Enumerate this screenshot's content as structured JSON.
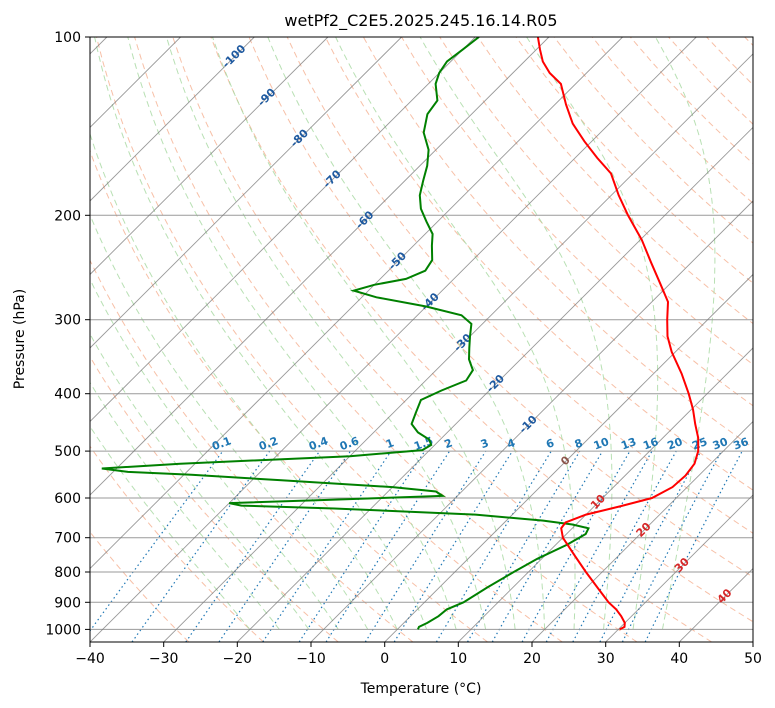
{
  "chart_data": {
    "type": "line",
    "title": "wetPf2_C2E5.2025.245.16.14.R05",
    "xlabel": "Temperature (°C)",
    "ylabel": "Pressure (hPa)",
    "xlim": [
      -40,
      50
    ],
    "ylim": [
      1050,
      100
    ],
    "skew_deg_per_log_pressure": 35,
    "x_ticks": [
      -40,
      -30,
      -20,
      -10,
      0,
      10,
      20,
      30,
      40,
      50
    ],
    "x_tick_labels": [
      "−40",
      "−30",
      "−20",
      "−10",
      "0",
      "10",
      "20",
      "30",
      "40",
      "50"
    ],
    "y_ticks": [
      1000,
      900,
      800,
      700,
      600,
      500,
      400,
      300,
      200,
      100
    ],
    "y_tick_labels": [
      "1000",
      "900",
      "800",
      "700",
      "600",
      "500",
      "400",
      "300",
      "200",
      "100"
    ],
    "isotherm_labels": [
      {
        "value": -100,
        "text": "-100"
      },
      {
        "value": -90,
        "text": "-90"
      },
      {
        "value": -80,
        "text": "-80"
      },
      {
        "value": -70,
        "text": "-70"
      },
      {
        "value": -60,
        "text": "-60"
      },
      {
        "value": -50,
        "text": "-50"
      },
      {
        "value": -40,
        "text": "-40"
      },
      {
        "value": -30,
        "text": "-30"
      },
      {
        "value": -20,
        "text": "-20"
      },
      {
        "value": -10,
        "text": "-10"
      },
      {
        "value": 0,
        "text": "0"
      },
      {
        "value": 10,
        "text": "10"
      },
      {
        "value": 20,
        "text": "20"
      },
      {
        "value": 30,
        "text": "30"
      },
      {
        "value": 40,
        "text": "40"
      }
    ],
    "mixing_ratio_labels": [
      "0.1",
      "0.2",
      "0.4",
      "0.6",
      "1",
      "1.5",
      "2",
      "3",
      "4",
      "6",
      "8",
      "10",
      "13",
      "16",
      "20",
      "25",
      "30",
      "36"
    ],
    "mixing_ratio_values": [
      0.1,
      0.2,
      0.4,
      0.6,
      1,
      1.5,
      2,
      3,
      4,
      6,
      8,
      10,
      13,
      16,
      20,
      25,
      30,
      36
    ],
    "series": [
      {
        "name": "Temperature",
        "color": "#ff0000",
        "points": [
          [
            1000,
            30.2
          ],
          [
            990,
            30.5
          ],
          [
            975,
            30.0
          ],
          [
            950,
            28.6
          ],
          [
            925,
            27.0
          ],
          [
            900,
            25.0
          ],
          [
            850,
            21.5
          ],
          [
            800,
            17.8
          ],
          [
            750,
            14.0
          ],
          [
            700,
            10.0
          ],
          [
            675,
            8.5
          ],
          [
            660,
            8.3
          ],
          [
            640,
            10.0
          ],
          [
            620,
            13.5
          ],
          [
            600,
            16.7
          ],
          [
            575,
            18.0
          ],
          [
            550,
            18.2
          ],
          [
            525,
            17.8
          ],
          [
            500,
            16.6
          ],
          [
            475,
            14.8
          ],
          [
            450,
            12.5
          ],
          [
            425,
            10.2
          ],
          [
            400,
            7.5
          ],
          [
            370,
            3.8
          ],
          [
            340,
            -0.5
          ],
          [
            320,
            -3.2
          ],
          [
            300,
            -5.5
          ],
          [
            280,
            -7.8
          ],
          [
            260,
            -11.5
          ],
          [
            240,
            -15.5
          ],
          [
            220,
            -19.8
          ],
          [
            200,
            -25.0
          ],
          [
            185,
            -29.0
          ],
          [
            170,
            -33.0
          ],
          [
            160,
            -37.0
          ],
          [
            150,
            -41.0
          ],
          [
            140,
            -45.0
          ],
          [
            130,
            -48.5
          ],
          [
            120,
            -52.0
          ],
          [
            115,
            -55.0
          ],
          [
            110,
            -57.5
          ],
          [
            105,
            -59.5
          ],
          [
            100,
            -61.5
          ]
        ]
      },
      {
        "name": "Dewpoint",
        "color": "#008000",
        "points": [
          [
            1000,
            2.8
          ],
          [
            990,
            2.6
          ],
          [
            975,
            3.2
          ],
          [
            950,
            3.8
          ],
          [
            925,
            4.0
          ],
          [
            900,
            5.3
          ],
          [
            850,
            6.5
          ],
          [
            800,
            8.0
          ],
          [
            760,
            9.4
          ],
          [
            720,
            11.5
          ],
          [
            690,
            12.6
          ],
          [
            675,
            12.2
          ],
          [
            665,
            9.5
          ],
          [
            655,
            5.0
          ],
          [
            640,
            -5.0
          ],
          [
            625,
            -25.0
          ],
          [
            618,
            -38.0
          ],
          [
            612,
            -40.0
          ],
          [
            605,
            -28.0
          ],
          [
            595,
            -12.0
          ],
          [
            585,
            -13.5
          ],
          [
            575,
            -20.0
          ],
          [
            560,
            -36.0
          ],
          [
            548,
            -49.0
          ],
          [
            542,
            -58.0
          ],
          [
            535,
            -62.0
          ],
          [
            525,
            -52.0
          ],
          [
            510,
            -30.0
          ],
          [
            498,
            -21.0
          ],
          [
            488,
            -20.5
          ],
          [
            478,
            -21.5
          ],
          [
            465,
            -24.0
          ],
          [
            450,
            -26.0
          ],
          [
            430,
            -27.0
          ],
          [
            410,
            -28.0
          ],
          [
            395,
            -26.5
          ],
          [
            380,
            -24.5
          ],
          [
            365,
            -25.0
          ],
          [
            350,
            -27.0
          ],
          [
            335,
            -28.5
          ],
          [
            320,
            -30.0
          ],
          [
            305,
            -31.5
          ],
          [
            295,
            -34.0
          ],
          [
            285,
            -40.0
          ],
          [
            275,
            -48.0
          ],
          [
            268,
            -52.0
          ],
          [
            262,
            -50.0
          ],
          [
            256,
            -46.5
          ],
          [
            248,
            -45.0
          ],
          [
            238,
            -45.5
          ],
          [
            225,
            -47.5
          ],
          [
            215,
            -49.0
          ],
          [
            205,
            -51.5
          ],
          [
            195,
            -54.0
          ],
          [
            185,
            -56.0
          ],
          [
            175,
            -57.5
          ],
          [
            165,
            -59.0
          ],
          [
            155,
            -61.0
          ],
          [
            145,
            -64.0
          ],
          [
            135,
            -66.0
          ],
          [
            128,
            -66.5
          ],
          [
            120,
            -69.0
          ],
          [
            115,
            -70.0
          ],
          [
            110,
            -70.5
          ],
          [
            105,
            -70.0
          ],
          [
            100,
            -69.5
          ]
        ]
      }
    ]
  },
  "colors": {
    "temperature": "#ff0000",
    "dewpoint": "#008000",
    "dry_adiabat": "#f4a582",
    "moist_adiabat": "#a6d8a0",
    "mixing_ratio": "#1f77b4",
    "isotherm": "#777777",
    "isobar": "#9a9a9a",
    "isotherm_label_cold": "#1f5aa0",
    "isotherm_label_warm": "#d62728",
    "mixing_label": "#1f77b4"
  }
}
